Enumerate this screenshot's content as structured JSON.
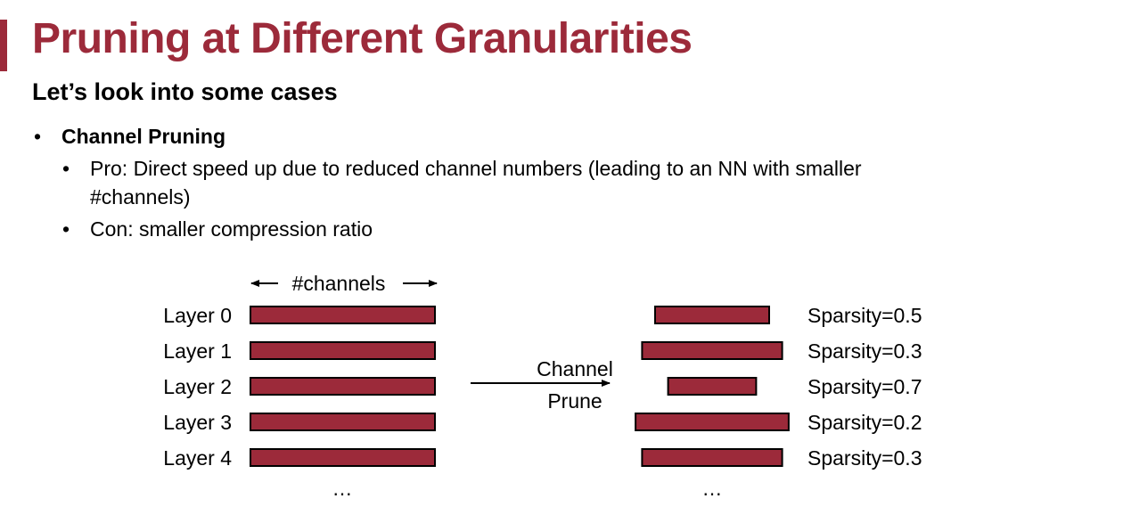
{
  "slide": {
    "title": "Pruning at Different Granularities",
    "subtitle": "Let’s look into some cases",
    "accent_color": "#9c2a3a",
    "bullets": [
      {
        "level": 1,
        "text": "Channel Pruning",
        "bold": true
      },
      {
        "level": 2,
        "text": "Pro: Direct speed up due to reduced channel numbers (leading to an NN with smaller",
        "continuation": "#channels)"
      },
      {
        "level": 2,
        "text": "Con: smaller compression ratio"
      }
    ]
  },
  "diagram": {
    "channels_label": "#channels",
    "arrow_label_line1": "Channel",
    "arrow_label_line2": "Prune",
    "ellipsis": "…",
    "bar_fill": "#9c2a3a",
    "bar_stroke": "#000000",
    "layers": [
      {
        "name": "Layer 0",
        "sparsity_label": "Sparsity=0.5",
        "sparsity": 0.5
      },
      {
        "name": "Layer 1",
        "sparsity_label": "Sparsity=0.3",
        "sparsity": 0.3
      },
      {
        "name": "Layer 2",
        "sparsity_label": "Sparsity=0.7",
        "sparsity": 0.7
      },
      {
        "name": "Layer 3",
        "sparsity_label": "Sparsity=0.2",
        "sparsity": 0.2
      },
      {
        "name": "Layer 4",
        "sparsity_label": "Sparsity=0.3",
        "sparsity": 0.3
      }
    ]
  }
}
